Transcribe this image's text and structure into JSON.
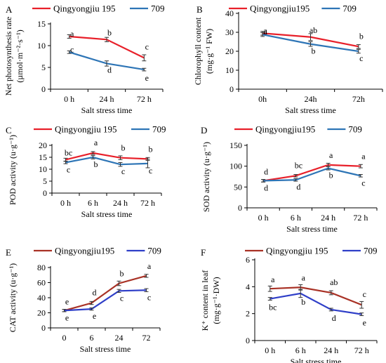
{
  "chart_data": [
    {
      "panel": "A",
      "type": "line",
      "categories": [
        "0 h",
        "24 h",
        "72 h"
      ],
      "ylabel": "Net photosynthesis rate",
      "yunit": "(µmol·m⁻²·s⁻¹)",
      "xlabel": "Salt stress time",
      "ylim": [
        0,
        15
      ],
      "yticks": [
        0,
        5,
        10,
        15
      ],
      "legend": "top",
      "series": [
        {
          "name": "Qingyongjiu 195",
          "color": "#e8202a",
          "values": [
            12.1,
            11.4,
            7.2
          ],
          "errors": [
            0.4,
            0.5,
            0.7
          ],
          "labels": [
            "a",
            "b",
            "c"
          ]
        },
        {
          "name": "709",
          "color": "#2e75b6",
          "values": [
            8.5,
            5.9,
            4.5
          ],
          "errors": [
            0.3,
            0.6,
            0.3
          ],
          "labels": [
            "c",
            "d",
            "e"
          ]
        }
      ]
    },
    {
      "panel": "B",
      "type": "line",
      "categories": [
        "0h",
        "24h",
        "72h"
      ],
      "ylabel": "Chlorophyll content",
      "yunit": "(mg·g⁻¹ FW)",
      "xlabel": "Salt stress time",
      "ylim": [
        0,
        40
      ],
      "yticks": [
        0,
        10,
        20,
        30,
        40
      ],
      "legend": "top",
      "series": [
        {
          "name": "Qingyongjiu195",
          "color": "#e8202a",
          "values": [
            29.5,
            27.5,
            22.5
          ],
          "errors": [
            1.0,
            1.8,
            1.0
          ],
          "labels": [
            "a",
            "ab",
            "b"
          ]
        },
        {
          "name": "709",
          "color": "#2e75b6",
          "values": [
            28.8,
            23.8,
            20.0
          ],
          "errors": [
            1.0,
            1.2,
            1.0
          ],
          "labels": [
            "a",
            "b",
            "c"
          ]
        }
      ]
    },
    {
      "panel": "C",
      "type": "line",
      "categories": [
        "0 h",
        "6 h",
        "24 h",
        "72 h"
      ],
      "ylabel": "POD activity (u·g⁻¹)",
      "yunit": "",
      "xlabel": "Salt stress time",
      "ylim": [
        0,
        20
      ],
      "yticks": [
        0,
        5,
        10,
        15,
        20
      ],
      "legend": "top",
      "series": [
        {
          "name": "Qingyongjiu 195",
          "color": "#e8202a",
          "values": [
            14.0,
            16.8,
            14.8,
            14.3
          ],
          "errors": [
            0.6,
            0.6,
            0.8,
            0.6
          ],
          "labels": [
            "bc",
            "a",
            "b",
            "b"
          ]
        },
        {
          "name": "709",
          "color": "#2e75b6",
          "values": [
            12.8,
            15.0,
            12.0,
            12.4
          ],
          "errors": [
            0.5,
            0.7,
            0.8,
            1.8
          ],
          "labels": [
            "c",
            "b",
            "c",
            "c"
          ]
        }
      ]
    },
    {
      "panel": "D",
      "type": "line",
      "categories": [
        "0 h",
        "6 h",
        "24 h",
        "72 h"
      ],
      "ylabel": "SOD activity (u·g⁻¹)",
      "yunit": "",
      "xlabel": "Salt stress time",
      "ylim": [
        0,
        150
      ],
      "yticks": [
        0,
        50,
        100,
        150
      ],
      "legend": "top",
      "series": [
        {
          "name": "Qingyongjiu195",
          "color": "#e8202a",
          "values": [
            65,
            77,
            103,
            100
          ],
          "errors": [
            3,
            3,
            4,
            4
          ],
          "labels": [
            "d",
            "bc",
            "a",
            "a"
          ]
        },
        {
          "name": "709",
          "color": "#2e75b6",
          "values": [
            65,
            67,
            95,
            77
          ],
          "errors": [
            3,
            3,
            4,
            3
          ],
          "labels": [
            "d",
            "d",
            "b",
            "c"
          ]
        }
      ]
    },
    {
      "panel": "E",
      "type": "line",
      "categories": [
        "0",
        "6",
        "24",
        "72"
      ],
      "ylabel": "CAT activity (u·g⁻¹)",
      "yunit": "",
      "xlabel": "Salt stress time",
      "ylim": [
        0,
        80
      ],
      "yticks": [
        0,
        20,
        40,
        60,
        80
      ],
      "legend": "top",
      "series": [
        {
          "name": "Qingyongjiu195",
          "color": "#a93226",
          "values": [
            23,
            33,
            59,
            69
          ],
          "errors": [
            1.5,
            2,
            3,
            2
          ],
          "labels": [
            "e",
            "d",
            "b",
            "a"
          ]
        },
        {
          "name": "709",
          "color": "#2f3fc8",
          "values": [
            23,
            25,
            49,
            50
          ],
          "errors": [
            1.5,
            1.5,
            2,
            2
          ],
          "labels": [
            "e",
            "e",
            "c",
            "c"
          ]
        }
      ]
    },
    {
      "panel": "F",
      "type": "line",
      "categories": [
        "0 h",
        "6 h",
        "24 h",
        "72 h"
      ],
      "ylabel": "K⁺ content in leaf",
      "yunit": "(mg·g⁻¹·DW)",
      "xlabel": "Salt stress time",
      "ylim": [
        0,
        6
      ],
      "yticks": [
        0,
        2,
        4,
        6
      ],
      "legend": "top",
      "series": [
        {
          "name": "Qingyongjiu 195",
          "color": "#a93226",
          "values": [
            3.85,
            3.95,
            3.55,
            2.65
          ],
          "errors": [
            0.2,
            0.2,
            0.15,
            0.25
          ],
          "labels": [
            "a",
            "a",
            "ab",
            "c"
          ]
        },
        {
          "name": "709",
          "color": "#2f3fc8",
          "values": [
            3.1,
            3.5,
            2.3,
            1.95
          ],
          "errors": [
            0.1,
            0.3,
            0.1,
            0.1
          ],
          "labels": [
            "bc",
            "b",
            "d",
            "e"
          ]
        }
      ]
    }
  ]
}
